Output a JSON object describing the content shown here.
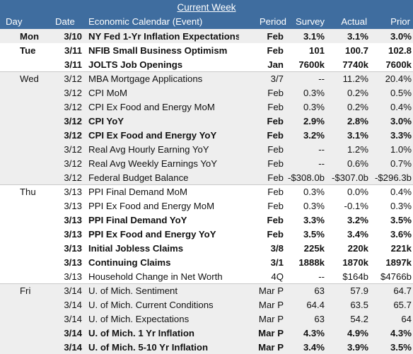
{
  "title": "Current Week",
  "columns": {
    "day": "Day",
    "date": "Date",
    "event": "Economic Calendar (Event)",
    "period": "Period",
    "survey": "Survey",
    "actual": "Actual",
    "prior": "Prior"
  },
  "rows": [
    {
      "day": "Mon",
      "date": "3/10",
      "event": "NY Fed 1-Yr Inflation Expectations",
      "period": "Feb",
      "survey": "3.1%",
      "actual": "3.1%",
      "prior": "3.0%",
      "bold": true,
      "bg": "gray",
      "sep": false
    },
    {
      "day": "Tue",
      "date": "3/11",
      "event": "NFIB Small Business Optimism",
      "period": "Feb",
      "survey": "101",
      "actual": "100.7",
      "prior": "102.8",
      "bold": true,
      "bg": "white",
      "sep": false
    },
    {
      "day": "",
      "date": "3/11",
      "event": "JOLTS Job Openings",
      "period": "Jan",
      "survey": "7600k",
      "actual": "7740k",
      "prior": "7600k",
      "bold": true,
      "bg": "white",
      "sep": false
    },
    {
      "day": "Wed",
      "date": "3/12",
      "event": "MBA Mortgage Applications",
      "period": "3/7",
      "survey": "--",
      "actual": "11.2%",
      "prior": "20.4%",
      "bold": false,
      "bg": "gray",
      "sep": true
    },
    {
      "day": "",
      "date": "3/12",
      "event": "CPI MoM",
      "period": "Feb",
      "survey": "0.3%",
      "actual": "0.2%",
      "prior": "0.5%",
      "bold": false,
      "bg": "gray",
      "sep": false
    },
    {
      "day": "",
      "date": "3/12",
      "event": "CPI Ex Food and Energy MoM",
      "period": "Feb",
      "survey": "0.3%",
      "actual": "0.2%",
      "prior": "0.4%",
      "bold": false,
      "bg": "gray",
      "sep": false
    },
    {
      "day": "",
      "date": "3/12",
      "event": "CPI YoY",
      "period": "Feb",
      "survey": "2.9%",
      "actual": "2.8%",
      "prior": "3.0%",
      "bold": true,
      "bg": "gray",
      "sep": false
    },
    {
      "day": "",
      "date": "3/12",
      "event": "CPI Ex Food and Energy YoY",
      "period": "Feb",
      "survey": "3.2%",
      "actual": "3.1%",
      "prior": "3.3%",
      "bold": true,
      "bg": "gray",
      "sep": false
    },
    {
      "day": "",
      "date": "3/12",
      "event": "Real Avg Hourly Earning YoY",
      "period": "Feb",
      "survey": "--",
      "actual": "1.2%",
      "prior": "1.0%",
      "bold": false,
      "bg": "gray",
      "sep": false
    },
    {
      "day": "",
      "date": "3/12",
      "event": "Real Avg Weekly Earnings YoY",
      "period": "Feb",
      "survey": "--",
      "actual": "0.6%",
      "prior": "0.7%",
      "bold": false,
      "bg": "gray",
      "sep": false
    },
    {
      "day": "",
      "date": "3/12",
      "event": "Federal Budget Balance",
      "period": "Feb",
      "survey": "-$308.0b",
      "actual": "-$307.0b",
      "prior": "-$296.3b",
      "bold": false,
      "bg": "gray",
      "sep": false
    },
    {
      "day": "Thu",
      "date": "3/13",
      "event": "PPI Final Demand MoM",
      "period": "Feb",
      "survey": "0.3%",
      "actual": "0.0%",
      "prior": "0.4%",
      "bold": false,
      "bg": "white",
      "sep": true
    },
    {
      "day": "",
      "date": "3/13",
      "event": "PPI Ex Food and Energy MoM",
      "period": "Feb",
      "survey": "0.3%",
      "actual": "-0.1%",
      "prior": "0.3%",
      "bold": false,
      "bg": "white",
      "sep": false
    },
    {
      "day": "",
      "date": "3/13",
      "event": "PPI Final Demand YoY",
      "period": "Feb",
      "survey": "3.3%",
      "actual": "3.2%",
      "prior": "3.5%",
      "bold": true,
      "bg": "white",
      "sep": false
    },
    {
      "day": "",
      "date": "3/13",
      "event": "PPI Ex Food and Energy YoY",
      "period": "Feb",
      "survey": "3.5%",
      "actual": "3.4%",
      "prior": "3.6%",
      "bold": true,
      "bg": "white",
      "sep": false
    },
    {
      "day": "",
      "date": "3/13",
      "event": "Initial Jobless Claims",
      "period": "3/8",
      "survey": "225k",
      "actual": "220k",
      "prior": "221k",
      "bold": true,
      "bg": "white",
      "sep": false
    },
    {
      "day": "",
      "date": "3/13",
      "event": "Continuing Claims",
      "period": "3/1",
      "survey": "1888k",
      "actual": "1870k",
      "prior": "1897k",
      "bold": true,
      "bg": "white",
      "sep": false
    },
    {
      "day": "",
      "date": "3/13",
      "event": "Household Change in Net Worth",
      "period": "4Q",
      "survey": "--",
      "actual": "$164b",
      "prior": "$4766b",
      "bold": false,
      "bg": "white",
      "sep": false
    },
    {
      "day": "Fri",
      "date": "3/14",
      "event": "U. of Mich. Sentiment",
      "period": "Mar P",
      "survey": "63",
      "actual": "57.9",
      "prior": "64.7",
      "bold": false,
      "bg": "gray",
      "sep": true
    },
    {
      "day": "",
      "date": "3/14",
      "event": "U. of Mich. Current Conditions",
      "period": "Mar P",
      "survey": "64.4",
      "actual": "63.5",
      "prior": "65.7",
      "bold": false,
      "bg": "gray",
      "sep": false
    },
    {
      "day": "",
      "date": "3/14",
      "event": "U. of Mich. Expectations",
      "period": "Mar P",
      "survey": "63",
      "actual": "54.2",
      "prior": "64",
      "bold": false,
      "bg": "gray",
      "sep": false
    },
    {
      "day": "",
      "date": "3/14",
      "event": "U. of Mich. 1 Yr Inflation",
      "period": "Mar P",
      "survey": "4.3%",
      "actual": "4.9%",
      "prior": "4.3%",
      "bold": true,
      "bg": "gray",
      "sep": false
    },
    {
      "day": "",
      "date": "3/14",
      "event": "U. of Mich. 5-10 Yr Inflation",
      "period": "Mar P",
      "survey": "3.4%",
      "actual": "3.9%",
      "prior": "3.5%",
      "bold": true,
      "bg": "gray",
      "sep": false
    }
  ]
}
